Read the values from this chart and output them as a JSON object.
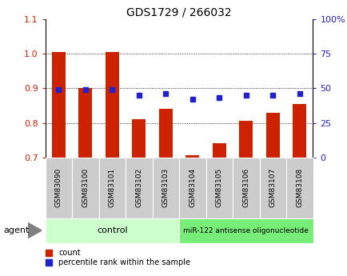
{
  "title": "GDS1729 / 266032",
  "categories": [
    "GSM83090",
    "GSM83100",
    "GSM83101",
    "GSM83102",
    "GSM83103",
    "GSM83104",
    "GSM83105",
    "GSM83106",
    "GSM83107",
    "GSM83108"
  ],
  "red_values": [
    1.005,
    0.9,
    1.005,
    0.81,
    0.84,
    0.705,
    0.74,
    0.805,
    0.83,
    0.855
  ],
  "blue_pct": [
    49,
    49,
    49,
    45,
    46,
    42,
    43,
    45,
    45,
    46
  ],
  "ylim": [
    0.7,
    1.1
  ],
  "y2lim": [
    0,
    100
  ],
  "yticks": [
    0.7,
    0.8,
    0.9,
    1.0,
    1.1
  ],
  "y2ticks": [
    0,
    25,
    50,
    75,
    100
  ],
  "ytick_labels": [
    "0.7",
    "0.8",
    "0.9",
    "1.0",
    "1.1"
  ],
  "y2tick_labels": [
    "0",
    "25",
    "50",
    "75",
    "100%"
  ],
  "red_color": "#cc2200",
  "blue_color": "#2222cc",
  "bar_width": 0.5,
  "control_label": "control",
  "treatment_label": "miR-122 antisense oligonucleotide",
  "agent_label": "agent",
  "legend_red": "count",
  "legend_blue": "percentile rank within the sample",
  "control_bg": "#ccffcc",
  "treatment_bg": "#77ee77",
  "tick_bg": "#cccccc",
  "grid_lines": [
    0.8,
    0.9,
    1.0
  ]
}
